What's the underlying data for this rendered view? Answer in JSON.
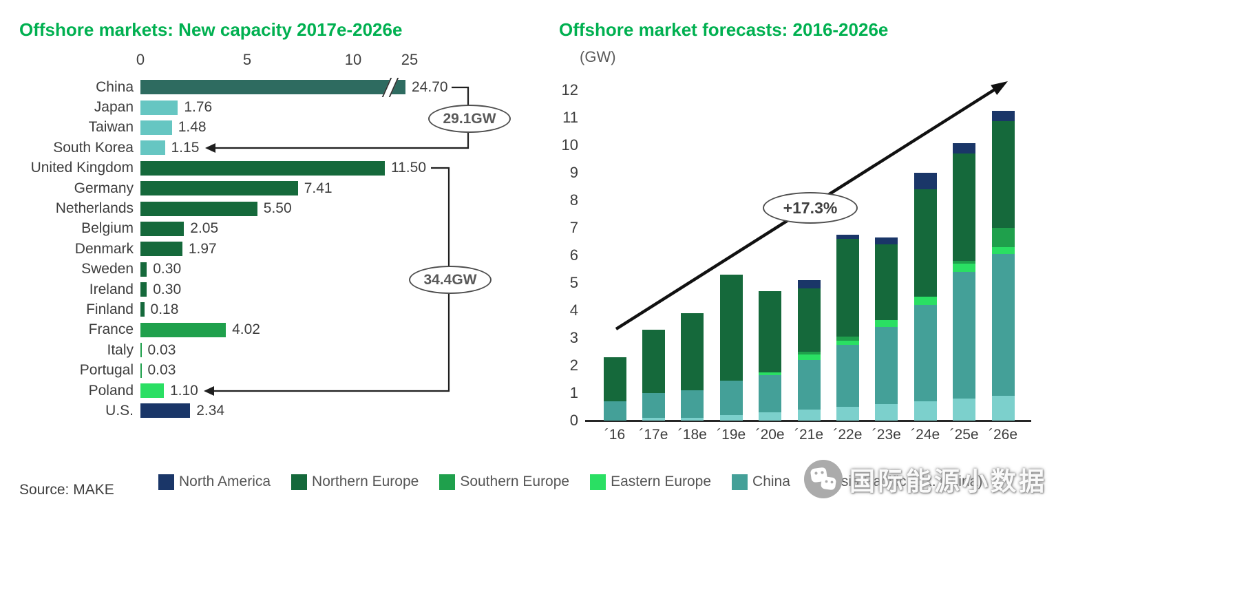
{
  "page": {
    "accent_green": "#00B050",
    "background": "#ffffff"
  },
  "chart_data": [
    {
      "type": "bar",
      "orientation": "horizontal",
      "title": "Offshore markets: New capacity 2017e-2026e",
      "unit": "GW",
      "x_ticks": [
        0,
        5,
        10,
        25
      ],
      "x_tick_labels": [
        "0",
        "5",
        "10",
        "25"
      ],
      "axis_break_between": [
        10,
        25
      ],
      "bars": [
        {
          "label": "China",
          "value": 24.7,
          "value_label": "24.70",
          "color": "#2E6B60",
          "axis_break": true
        },
        {
          "label": "Japan",
          "value": 1.76,
          "value_label": "1.76",
          "color": "#66C6C2"
        },
        {
          "label": "Taiwan",
          "value": 1.48,
          "value_label": "1.48",
          "color": "#66C6C2"
        },
        {
          "label": "South Korea",
          "value": 1.15,
          "value_label": "1.15",
          "color": "#66C6C2"
        },
        {
          "label": "United Kingdom",
          "value": 11.5,
          "value_label": "11.50",
          "color": "#15693B"
        },
        {
          "label": "Germany",
          "value": 7.41,
          "value_label": "7.41",
          "color": "#15693B"
        },
        {
          "label": "Netherlands",
          "value": 5.5,
          "value_label": "5.50",
          "color": "#15693B"
        },
        {
          "label": "Belgium",
          "value": 2.05,
          "value_label": "2.05",
          "color": "#15693B"
        },
        {
          "label": "Denmark",
          "value": 1.97,
          "value_label": "1.97",
          "color": "#15693B"
        },
        {
          "label": "Sweden",
          "value": 0.3,
          "value_label": "0.30",
          "color": "#15693B"
        },
        {
          "label": "Ireland",
          "value": 0.3,
          "value_label": "0.30",
          "color": "#15693B"
        },
        {
          "label": "Finland",
          "value": 0.18,
          "value_label": "0.18",
          "color": "#15693B"
        },
        {
          "label": "France",
          "value": 4.02,
          "value_label": "4.02",
          "color": "#1FA04C"
        },
        {
          "label": "Italy",
          "value": 0.03,
          "value_label": "0.03",
          "color": "#1FA04C"
        },
        {
          "label": "Portugal",
          "value": 0.03,
          "value_label": "0.03",
          "color": "#1FA04C"
        },
        {
          "label": "Poland",
          "value": 1.1,
          "value_label": "1.10",
          "color": "#2ADF63"
        },
        {
          "label": "U.S.",
          "value": 2.34,
          "value_label": "2.34",
          "color": "#1A3668"
        }
      ],
      "annotations": [
        {
          "text": "29.1GW",
          "meaning": "Asia total (China through South Korea)"
        },
        {
          "text": "34.4GW",
          "meaning": "Europe total (United Kingdom through Poland)"
        }
      ]
    },
    {
      "type": "bar",
      "stacked": true,
      "title": "Offshore market forecasts: 2016-2026e",
      "unit_label": "(GW)",
      "ylim": [
        0,
        12
      ],
      "y_tick_step": 1,
      "categories": [
        "´16",
        "´17e",
        "´18e",
        "´19e",
        "´20e",
        "´21e",
        "´22e",
        "´23e",
        "´24e",
        "´25e",
        "´26e"
      ],
      "series": [
        {
          "name": "Asia Pacific (Ex. China)",
          "color": "#7CD0CC",
          "values": [
            0,
            0.1,
            0.1,
            0.2,
            0.3,
            0.4,
            0.5,
            0.6,
            0.7,
            0.8,
            0.9
          ]
        },
        {
          "name": "China",
          "color": "#44A098",
          "values": [
            0.7,
            0.9,
            1.0,
            1.25,
            1.35,
            1.8,
            2.25,
            2.8,
            3.5,
            4.6,
            5.15
          ]
        },
        {
          "name": "Eastern Europe",
          "color": "#2ADF63",
          "values": [
            0,
            0,
            0,
            0,
            0.1,
            0.2,
            0.15,
            0.25,
            0.3,
            0.3,
            0.25
          ]
        },
        {
          "name": "Southern Europe",
          "color": "#1FA04C",
          "values": [
            0,
            0,
            0,
            0,
            0,
            0.1,
            0.15,
            0,
            0,
            0.1,
            0.7
          ]
        },
        {
          "name": "Northern Europe",
          "color": "#15693B",
          "values": [
            1.6,
            2.3,
            2.8,
            3.85,
            2.95,
            2.3,
            3.55,
            2.75,
            3.9,
            3.9,
            3.87
          ]
        },
        {
          "name": "North America",
          "color": "#1A3668",
          "values": [
            0,
            0,
            0,
            0,
            0,
            0.3,
            0.15,
            0.25,
            0.6,
            0.38,
            0.38
          ]
        }
      ],
      "annotation_label": "+17.3%",
      "trend_arrow": "up"
    }
  ],
  "legend": {
    "items": [
      {
        "label": "North America",
        "color": "#1A3668"
      },
      {
        "label": "Northern Europe",
        "color": "#15693B"
      },
      {
        "label": "Southern Europe",
        "color": "#1FA04C"
      },
      {
        "label": "Eastern Europe",
        "color": "#2ADF63"
      },
      {
        "label": "China",
        "color": "#44A098"
      },
      {
        "label": "Asia Pacific (Ex. China)",
        "color": "#7CD0CC"
      }
    ]
  },
  "source": "Source: MAKE",
  "watermark": {
    "text": "国际能源小数据",
    "icon": "wechat-chat-bubbles-icon"
  }
}
